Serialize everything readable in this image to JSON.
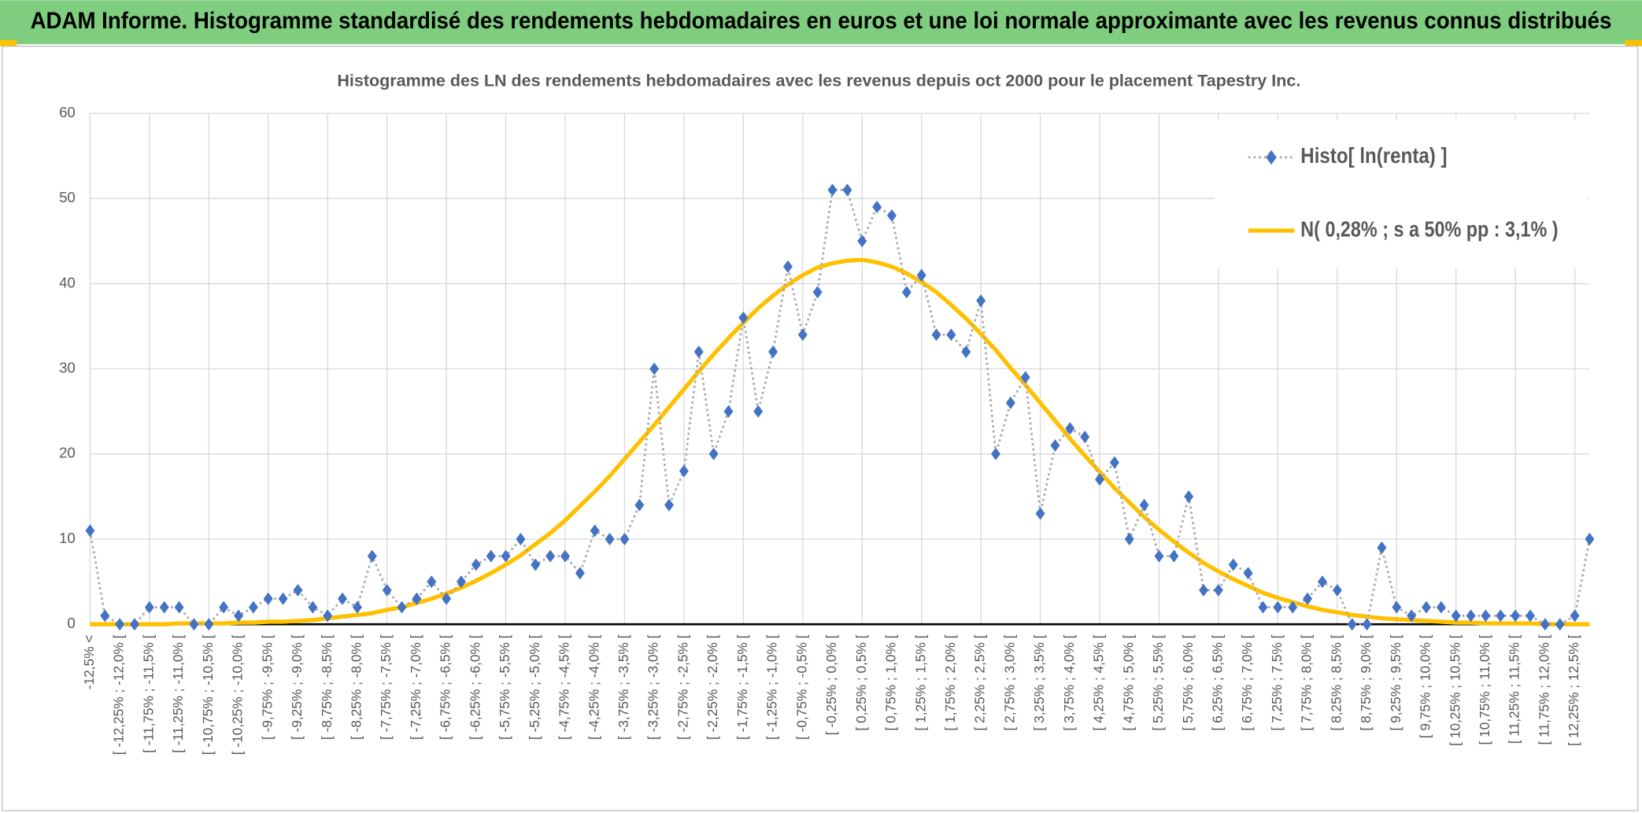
{
  "header": {
    "title": "ADAM Informe. Histogramme standardisé des rendements hebdomadaires en euros et une loi normale approximante avec les revenus connus distribués"
  },
  "chart_data": {
    "type": "line",
    "title": "Histogramme des LN des rendements hebdomadaires avec les revenus depuis oct 2000 pour le placement Tapestry Inc.",
    "categories": [
      "-12,5% <",
      null,
      "[ -12,25% ; -12,0% [",
      null,
      "[ -11,75% ; -11,5% [",
      null,
      "[ -11,25% ; -11,0% [",
      null,
      "[ -10,75% ; -10,5% [",
      null,
      "[ -10,25% ; -10,0% [",
      null,
      "[ -9,75% ; -9,5% [",
      null,
      "[ -9,25% ; -9,0% [",
      null,
      "[ -8,75% ; -8,5% [",
      null,
      "[ -8,25% ; -8,0% [",
      null,
      "[ -7,75% ; -7,5% [",
      null,
      "[ -7,25% ; -7,0% [",
      null,
      "[ -6,75% ; -6,5% [",
      null,
      "[ -6,25% ; -6,0% [",
      null,
      "[ -5,75% ; -5,5% [",
      null,
      "[ -5,25% ; -5,0% [",
      null,
      "[ -4,75% ; -4,5% [",
      null,
      "[ -4,25% ; -4,0% [",
      null,
      "[ -3,75% ; -3,5% [",
      null,
      "[ -3,25% ; -3,0% [",
      null,
      "[ -2,75% ; -2,5% [",
      null,
      "[ -2,25% ; -2,0% [",
      null,
      "[ -1,75% ; -1,5% [",
      null,
      "[ -1,25% ; -1,0% [",
      null,
      "[ -0,75% ; -0,5% [",
      null,
      "[ -0,25% ; 0,0% [",
      null,
      "[ 0,25% ; 0,5% [",
      null,
      "[ 0,75% ; 1,0% [",
      null,
      "[ 1,25% ; 1,5% [",
      null,
      "[ 1,75% ; 2,0% [",
      null,
      "[ 2,25% ; 2,5% [",
      null,
      "[ 2,75% ; 3,0% [",
      null,
      "[ 3,25% ; 3,5% [",
      null,
      "[ 3,75% ; 4,0% [",
      null,
      "[ 4,25% ; 4,5% [",
      null,
      "[ 4,75% ; 5,0% [",
      null,
      "[ 5,25% ; 5,5% [",
      null,
      "[ 5,75% ; 6,0% [",
      null,
      "[ 6,25% ; 6,5% [",
      null,
      "[ 6,75% ; 7,0% [",
      null,
      "[ 7,25% ; 7,5% [",
      null,
      "[ 7,75% ; 8,0% [",
      null,
      "[ 8,25% ; 8,5% [",
      null,
      "[ 8,75% ; 9,0% [",
      null,
      "[ 9,25% ; 9,5% [",
      null,
      "[ 9,75% ; 10,0% [",
      null,
      "[ 10,25% ; 10,5% [",
      null,
      "[ 10,75% ; 11,0% [",
      null,
      "[ 11,25% ; 11,5% [",
      null,
      "[ 11,75% ; 12,0% [",
      null,
      "[ 12,25% ; 12,5% [",
      null
    ],
    "series": [
      {
        "name": "Histo[ ln(renta) ]",
        "color": "#4472c4",
        "line_color": "#a5a5a5",
        "marker": "diamond",
        "line_style": "dotted",
        "values": [
          11,
          1,
          0,
          0,
          2,
          2,
          2,
          0,
          0,
          2,
          1,
          2,
          3,
          3,
          4,
          2,
          1,
          3,
          2,
          8,
          4,
          2,
          3,
          5,
          3,
          5,
          7,
          8,
          8,
          10,
          7,
          8,
          8,
          6,
          11,
          10,
          10,
          14,
          30,
          14,
          18,
          32,
          20,
          25,
          36,
          25,
          32,
          42,
          34,
          39,
          51,
          51,
          45,
          49,
          48,
          39,
          41,
          34,
          34,
          32,
          38,
          20,
          26,
          29,
          13,
          21,
          23,
          22,
          17,
          19,
          10,
          14,
          8,
          8,
          15,
          4,
          4,
          7,
          6,
          2,
          2,
          2,
          3,
          5,
          4,
          0,
          0,
          9,
          2,
          1,
          2,
          2,
          1,
          1,
          1,
          1,
          1,
          1,
          0,
          0,
          1,
          10
        ]
      },
      {
        "name": "N( 0,28% ; s a 50% pp : 3,1% )",
        "color": "#ffc000",
        "line_style": "solid",
        "values": [
          0.0,
          0.0,
          0.0,
          0.0,
          0.0,
          0.0,
          0.1,
          0.1,
          0.1,
          0.1,
          0.2,
          0.2,
          0.3,
          0.3,
          0.4,
          0.5,
          0.7,
          0.9,
          1.1,
          1.3,
          1.7,
          2.0,
          2.5,
          3.0,
          3.6,
          4.3,
          5.1,
          6.0,
          7.0,
          8.1,
          9.4,
          10.7,
          12.2,
          13.9,
          15.6,
          17.4,
          19.4,
          21.4,
          23.4,
          25.5,
          27.6,
          29.7,
          31.7,
          33.6,
          35.4,
          37.1,
          38.6,
          39.9,
          41.0,
          41.9,
          42.4,
          42.7,
          42.8,
          42.5,
          42.0,
          41.2,
          40.2,
          39.0,
          37.5,
          35.9,
          34.1,
          32.2,
          30.1,
          28.1,
          26.0,
          23.9,
          21.8,
          19.8,
          17.9,
          16.0,
          14.3,
          12.6,
          11.1,
          9.7,
          8.4,
          7.2,
          6.2,
          5.3,
          4.5,
          3.7,
          3.1,
          2.6,
          2.1,
          1.7,
          1.4,
          1.1,
          0.9,
          0.7,
          0.6,
          0.5,
          0.4,
          0.3,
          0.2,
          0.2,
          0.1,
          0.1,
          0.1,
          0.1,
          0.0,
          0.0,
          0.0,
          0.0
        ]
      }
    ],
    "ylim": [
      0,
      60
    ],
    "yticks": [
      0,
      10,
      20,
      30,
      40,
      50,
      60
    ],
    "grid": true,
    "legend": "upper right"
  }
}
